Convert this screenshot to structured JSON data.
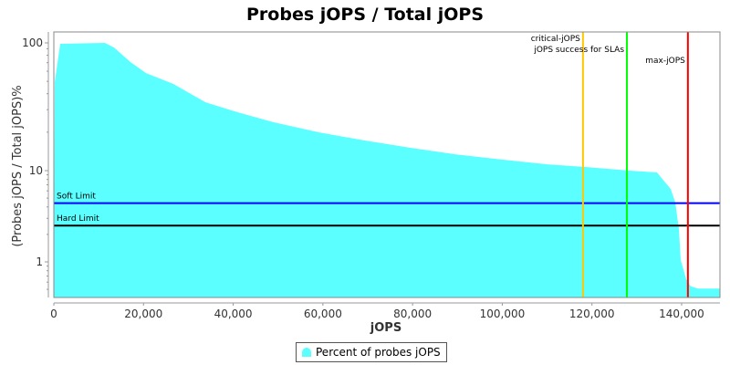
{
  "chart_data": {
    "type": "area",
    "title": "Probes jOPS / Total jOPS",
    "xlabel": "jOPS",
    "ylabel": "(Probes jOPS / Total jOPS)%",
    "xlim": [
      0,
      148550
    ],
    "ylim": [
      0.4,
      122
    ],
    "yscale": "log",
    "x_ticks": [
      0,
      20000,
      40000,
      60000,
      80000,
      100000,
      120000,
      140000
    ],
    "x_tick_labels": [
      "0",
      "20,000",
      "40,000",
      "60,000",
      "80,000",
      "100,000",
      "120,000",
      "140,000"
    ],
    "y_ticks": [
      1,
      10,
      100
    ],
    "y_tick_labels": [
      "1",
      "10",
      "100"
    ],
    "grid": false,
    "legend_placement": "bottom",
    "series": [
      {
        "name": "Percent of probes jOPS",
        "color": "#5cffff",
        "x": [
          0,
          203,
          1424,
          11395,
          13430,
          17093,
          20552,
          26657,
          33779,
          40901,
          49040,
          59215,
          69390,
          79564,
          89739,
          99913,
          110087,
          118227,
          128401,
          134506,
          137558,
          138576,
          139390,
          139797,
          141018,
          142035,
          143663,
          148550
        ],
        "y": [
          0.4,
          49.3,
          98.4,
          100,
          92,
          70.8,
          58,
          47.7,
          34.3,
          28.7,
          23.9,
          19.9,
          17.2,
          15.1,
          13.4,
          12.2,
          11.2,
          10.7,
          10,
          9.55,
          6.3,
          4.5,
          2.3,
          1.05,
          0.65,
          0.54,
          0.51,
          0.51
        ]
      }
    ],
    "horizontal_markers": [
      {
        "label": "Soft Limit",
        "value": 4.4,
        "color": "#0000ff"
      },
      {
        "label": "Hard Limit",
        "value": 2.5,
        "color": "#000000"
      }
    ],
    "vertical_markers": [
      {
        "label": "critical-jOPS",
        "value": 118000,
        "color": "#ffc800"
      },
      {
        "label": "jOPS success for SLAs",
        "value": 127800,
        "color": "#00ff00"
      },
      {
        "label": "max-jOPS",
        "value": 141400,
        "color": "#ff0000"
      }
    ]
  }
}
